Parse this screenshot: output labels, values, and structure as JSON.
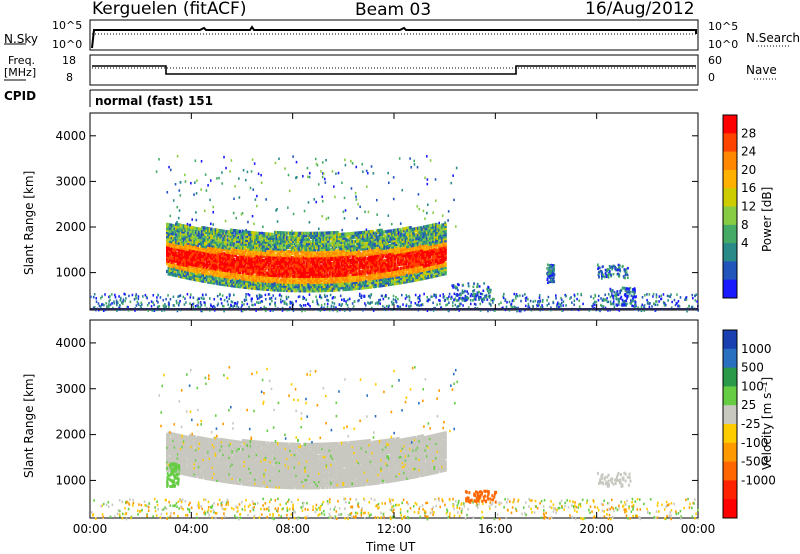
{
  "header": {
    "station": "Kerguelen (fitACF)",
    "beam": "Beam 03",
    "date": "16/Aug/2012"
  },
  "strips": {
    "nsky_label": "N.Sky",
    "nsky_ticks": [
      "10^5",
      "10^0"
    ],
    "nsearch_label": "N.Search",
    "nsearch_ticks": [
      "10^5",
      "10^0"
    ],
    "freq_label_1": "Freq.",
    "freq_label_2": "[MHz]",
    "freq_ticks": [
      "18",
      "8"
    ],
    "nave_label": "Nave",
    "nave_ticks": [
      "60",
      "0"
    ],
    "cpid_label": "CPID",
    "cpid_value": "normal (fast) 151"
  },
  "chart_data": [
    {
      "type": "heatmap",
      "panel": "power",
      "ylabel": "Slant Range [km]",
      "y_ticks": [
        "4000",
        "3000",
        "2000",
        "1000"
      ],
      "ylim": [
        180,
        4500
      ],
      "colorbar_label": "Power [dB]",
      "colorbar_ticks": [
        "28",
        "24",
        "20",
        "16",
        "12",
        "8",
        "4"
      ],
      "colors": [
        "#ff0000",
        "#ff4400",
        "#ff8800",
        "#ffb000",
        "#cccc00",
        "#88cc44",
        "#44aa66",
        "#2a8a88",
        "#2255bb",
        "#1a1aff"
      ]
    },
    {
      "type": "heatmap",
      "panel": "velocity",
      "ylabel": "Slant Range [km]",
      "y_ticks": [
        "4000",
        "3000",
        "2000",
        "1000"
      ],
      "ylim": [
        180,
        4500
      ],
      "colorbar_label": "Velocity [m s⁻¹]",
      "colorbar_ticks": [
        "1000",
        "500",
        "100",
        "25",
        "-25",
        "-100",
        "-500",
        "-1000"
      ],
      "colors": [
        "#1a3fb0",
        "#2a70c0",
        "#2a9a4a",
        "#66cc44",
        "#c8c8c0",
        "#ffcc00",
        "#ff9900",
        "#ff6600",
        "#ff2200",
        "#ff0000"
      ]
    }
  ],
  "xaxis": {
    "label": "Time UT",
    "ticks": [
      "00:00",
      "04:00",
      "08:00",
      "12:00",
      "16:00",
      "20:00",
      "00:00"
    ]
  }
}
